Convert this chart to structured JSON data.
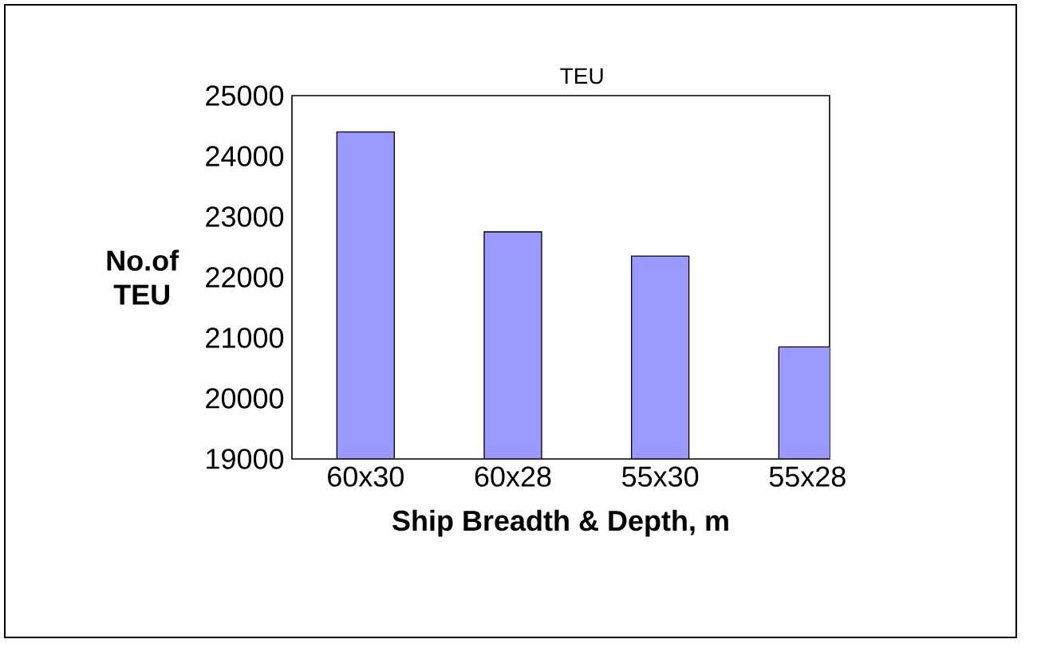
{
  "chart_data": {
    "type": "bar",
    "title": "TEU",
    "xlabel": "Ship Breadth & Depth, m",
    "ylabel": "No.of TEU",
    "categories": [
      "60x30",
      "60x28",
      "55x30",
      "55x28"
    ],
    "values": [
      24400,
      22750,
      22350,
      20850
    ],
    "color": "#9999ff",
    "ylim": [
      19000,
      25000
    ],
    "yticks": [
      19000,
      20000,
      21000,
      22000,
      23000,
      24000,
      25000
    ],
    "grid": false
  }
}
